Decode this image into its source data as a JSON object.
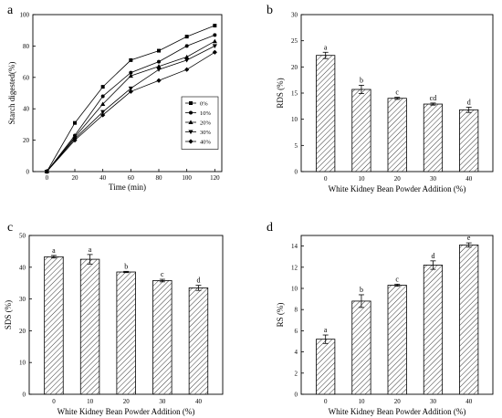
{
  "chart_data": [
    {
      "panel": "a",
      "type": "line",
      "xlabel": "Time (min)",
      "ylabel": "Starch digested(%)",
      "x": [
        0,
        20,
        40,
        60,
        80,
        100,
        120
      ],
      "xlim": [
        -10,
        125
      ],
      "ylim": [
        0,
        100
      ],
      "yticks": [
        0,
        20,
        40,
        60,
        80,
        100
      ],
      "xticks": [
        0,
        20,
        40,
        60,
        80,
        100,
        120
      ],
      "legend_position": "right",
      "series": [
        {
          "name": "0%",
          "marker": "square",
          "values": [
            0,
            31,
            54,
            71,
            77,
            86,
            93
          ]
        },
        {
          "name": "10%",
          "marker": "circle",
          "values": [
            0,
            23,
            48,
            63,
            70,
            80,
            87
          ]
        },
        {
          "name": "20%",
          "marker": "triangle-up",
          "values": [
            0,
            22,
            43,
            61,
            67,
            73,
            83
          ]
        },
        {
          "name": "30%",
          "marker": "triangle-down",
          "values": [
            0,
            21,
            38,
            53,
            65,
            71,
            80
          ]
        },
        {
          "name": "40%",
          "marker": "diamond",
          "values": [
            0,
            20,
            36,
            51,
            58,
            65,
            76
          ]
        }
      ]
    },
    {
      "panel": "b",
      "type": "bar",
      "xlabel": "White Kidney Bean Powder Addition (%)",
      "ylabel": "RDS (%)",
      "categories": [
        "0",
        "10",
        "20",
        "30",
        "40"
      ],
      "values": [
        22.2,
        15.7,
        14.0,
        12.9,
        11.8
      ],
      "errors": [
        0.6,
        0.8,
        0.2,
        0.2,
        0.5
      ],
      "labels": [
        "a",
        "b",
        "c",
        "cd",
        "d"
      ],
      "ylim": [
        0,
        30
      ],
      "yticks": [
        0,
        5,
        10,
        15,
        20,
        25,
        30
      ]
    },
    {
      "panel": "c",
      "type": "bar",
      "xlabel": "White Kidney Bean Powder Addition (%)",
      "ylabel": "SDS (%)",
      "categories": [
        "0",
        "10",
        "20",
        "30",
        "40"
      ],
      "values": [
        43.3,
        42.5,
        38.5,
        35.8,
        33.5
      ],
      "errors": [
        0.4,
        1.5,
        0.2,
        0.4,
        0.8
      ],
      "labels": [
        "a",
        "a",
        "b",
        "c",
        "d"
      ],
      "ylim": [
        0,
        50
      ],
      "yticks": [
        0,
        10,
        20,
        30,
        40,
        50
      ]
    },
    {
      "panel": "d",
      "type": "bar",
      "xlabel": "White Kidney Bean Powder Addition (%)",
      "ylabel": "RS (%)",
      "categories": [
        "0",
        "10",
        "20",
        "30",
        "40"
      ],
      "values": [
        5.2,
        8.8,
        10.3,
        12.2,
        14.1
      ],
      "errors": [
        0.4,
        0.6,
        0.1,
        0.4,
        0.2
      ],
      "labels": [
        "a",
        "b",
        "c",
        "d",
        "e"
      ],
      "ylim": [
        0,
        15
      ],
      "yticks": [
        0,
        2,
        4,
        6,
        8,
        10,
        12,
        14
      ]
    }
  ]
}
